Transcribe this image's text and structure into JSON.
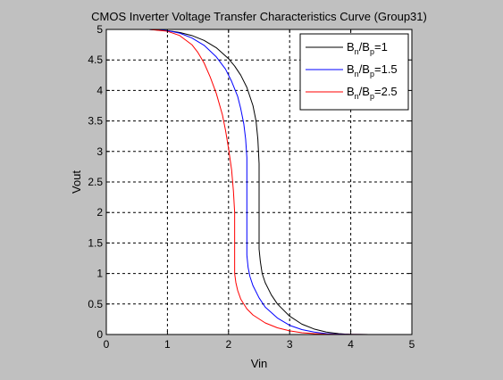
{
  "chart_data": {
    "type": "line",
    "title": "CMOS Inverter Voltage Transfer Characteristics Curve (Group31)",
    "xlabel": "Vin",
    "ylabel": "Vout",
    "xlim": [
      0,
      5
    ],
    "ylim": [
      0,
      5
    ],
    "xticks": [
      0,
      1,
      2,
      3,
      4,
      5
    ],
    "xtick_labels": [
      "0",
      "1",
      "2",
      "3",
      "4",
      "5"
    ],
    "yticks": [
      0,
      0.5,
      1,
      1.5,
      2,
      2.5,
      3,
      3.5,
      4,
      4.5,
      5
    ],
    "ytick_labels": [
      "0",
      "0.5",
      "1",
      "1.5",
      "2",
      "2.5",
      "3",
      "3.5",
      "4",
      "4.5",
      "5"
    ],
    "grid": true,
    "grid_style": "dashed",
    "legend_position": "top-right",
    "series": [
      {
        "name": "Bn/Bp=1",
        "legend": {
          "b1": "B",
          "s1": "n",
          "mid": "/B",
          "s2": "p",
          "tail": "=1"
        },
        "color": "#000000",
        "x": [
          0,
          0.7,
          1.0,
          1.2,
          1.4,
          1.6,
          1.8,
          2.0,
          2.1,
          2.2,
          2.3,
          2.4,
          2.45,
          2.48,
          2.5,
          2.5,
          2.52,
          2.55,
          2.6,
          2.7,
          2.8,
          3.0,
          3.2,
          3.4,
          3.6,
          3.8,
          3.9,
          4.0,
          4.3,
          5.0
        ],
        "y": [
          5,
          5,
          4.98,
          4.95,
          4.9,
          4.82,
          4.7,
          4.52,
          4.4,
          4.25,
          4.05,
          3.75,
          3.5,
          3.2,
          2.8,
          1.4,
          1.2,
          1.0,
          0.85,
          0.65,
          0.5,
          0.3,
          0.17,
          0.09,
          0.04,
          0.015,
          0.007,
          0.003,
          0,
          0
        ]
      },
      {
        "name": "Bn/Bp=1.5",
        "legend": {
          "b1": "B",
          "s1": "n",
          "mid": "/B",
          "s2": "p",
          "tail": "=1.5"
        },
        "color": "#0000ff",
        "x": [
          0,
          0.7,
          1.0,
          1.2,
          1.4,
          1.6,
          1.8,
          1.95,
          2.05,
          2.15,
          2.2,
          2.25,
          2.28,
          2.3,
          2.3,
          2.32,
          2.35,
          2.4,
          2.5,
          2.6,
          2.8,
          3.0,
          3.2,
          3.4,
          3.6,
          3.8,
          4.0,
          4.3,
          5.0
        ],
        "y": [
          5,
          5,
          4.98,
          4.94,
          4.86,
          4.74,
          4.55,
          4.35,
          4.15,
          3.9,
          3.7,
          3.45,
          3.2,
          2.9,
          1.3,
          1.1,
          0.95,
          0.8,
          0.6,
          0.45,
          0.27,
          0.15,
          0.08,
          0.04,
          0.015,
          0.006,
          0.002,
          0,
          0
        ]
      },
      {
        "name": "Bn/Bp=2.5",
        "legend": {
          "b1": "B",
          "s1": "n",
          "mid": "/B",
          "s2": "p",
          "tail": "=2.5"
        },
        "color": "#ff0000",
        "x": [
          0,
          0.7,
          1.0,
          1.2,
          1.4,
          1.5,
          1.6,
          1.7,
          1.8,
          1.9,
          1.95,
          2.0,
          2.05,
          2.08,
          2.1,
          2.1,
          2.12,
          2.15,
          2.2,
          2.3,
          2.4,
          2.6,
          2.8,
          3.0,
          3.2,
          3.4,
          3.6,
          3.8,
          4.0,
          4.3,
          5.0
        ],
        "y": [
          5,
          5,
          4.97,
          4.9,
          4.75,
          4.62,
          4.45,
          4.22,
          3.95,
          3.6,
          3.35,
          3.05,
          2.7,
          2.35,
          2.0,
          1.0,
          0.85,
          0.72,
          0.58,
          0.42,
          0.32,
          0.19,
          0.11,
          0.06,
          0.03,
          0.015,
          0.006,
          0.002,
          0.001,
          0,
          0
        ]
      }
    ]
  }
}
